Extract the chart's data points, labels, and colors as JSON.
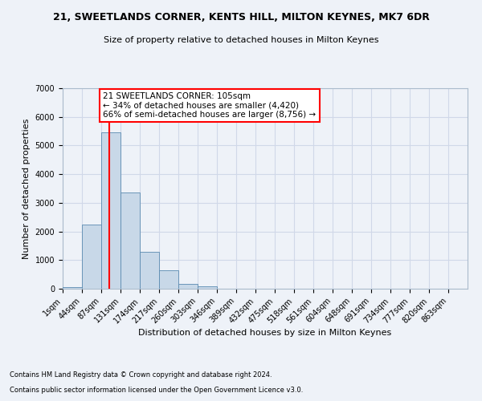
{
  "title": "21, SWEETLANDS CORNER, KENTS HILL, MILTON KEYNES, MK7 6DR",
  "subtitle": "Size of property relative to detached houses in Milton Keynes",
  "xlabel": "Distribution of detached houses by size in Milton Keynes",
  "ylabel": "Number of detached properties",
  "footnote1": "Contains HM Land Registry data © Crown copyright and database right 2024.",
  "footnote2": "Contains public sector information licensed under the Open Government Licence v3.0.",
  "bar_color": "#c8d8e8",
  "bar_edge_color": "#5a8ab0",
  "grid_color": "#d0d8e8",
  "background_color": "#eef2f8",
  "annotation_line1": "21 SWEETLANDS CORNER: 105sqm",
  "annotation_line2": "← 34% of detached houses are smaller (4,420)",
  "annotation_line3": "66% of semi-detached houses are larger (8,756) →",
  "annotation_box_color": "white",
  "annotation_box_edge_color": "red",
  "vline_color": "red",
  "vline_x_data": 105,
  "categories": [
    "1sqm",
    "44sqm",
    "87sqm",
    "131sqm",
    "174sqm",
    "217sqm",
    "260sqm",
    "303sqm",
    "346sqm",
    "389sqm",
    "432sqm",
    "475sqm",
    "518sqm",
    "561sqm",
    "604sqm",
    "648sqm",
    "691sqm",
    "734sqm",
    "777sqm",
    "820sqm",
    "863sqm"
  ],
  "bin_edges": [
    1,
    44,
    87,
    131,
    174,
    217,
    260,
    303,
    346,
    389,
    432,
    475,
    518,
    561,
    604,
    648,
    691,
    734,
    777,
    820,
    863,
    906
  ],
  "values": [
    50,
    2250,
    5450,
    3350,
    1300,
    650,
    175,
    75,
    0,
    0,
    0,
    0,
    0,
    0,
    0,
    0,
    0,
    0,
    0,
    0,
    0
  ],
  "ylim": [
    0,
    7000
  ],
  "yticks": [
    0,
    1000,
    2000,
    3000,
    4000,
    5000,
    6000,
    7000
  ],
  "title_fontsize": 9,
  "subtitle_fontsize": 8,
  "ylabel_fontsize": 8,
  "xlabel_fontsize": 8,
  "tick_fontsize": 7,
  "footnote_fontsize": 6
}
